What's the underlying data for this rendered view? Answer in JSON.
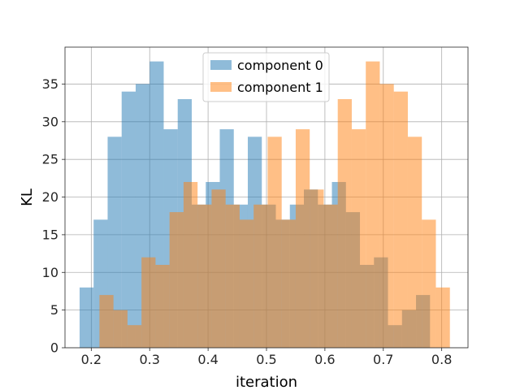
{
  "chart_data": {
    "type": "bar",
    "subtype": "histogram",
    "xlabel": "iteration",
    "ylabel": "KL",
    "xlim": [
      0.155,
      0.845
    ],
    "ylim": [
      0,
      39.9
    ],
    "xticks": [
      0.2,
      0.3,
      0.4,
      0.5,
      0.6,
      0.7,
      0.8
    ],
    "yticks": [
      0,
      5,
      10,
      15,
      20,
      25,
      30,
      35
    ],
    "grid": true,
    "legend_position": "top-center",
    "series": [
      {
        "name": "component 0",
        "color": "#1f77b4",
        "alpha": 0.5,
        "bins": [
          [
            0.18,
            0.204,
            8
          ],
          [
            0.204,
            0.228,
            17
          ],
          [
            0.228,
            0.252,
            28
          ],
          [
            0.252,
            0.276,
            34
          ],
          [
            0.276,
            0.3,
            35
          ],
          [
            0.3,
            0.324,
            38
          ],
          [
            0.324,
            0.348,
            29
          ],
          [
            0.348,
            0.372,
            33
          ],
          [
            0.372,
            0.396,
            19
          ],
          [
            0.396,
            0.42,
            22
          ],
          [
            0.42,
            0.444,
            29
          ],
          [
            0.444,
            0.468,
            19
          ],
          [
            0.468,
            0.492,
            28
          ],
          [
            0.492,
            0.516,
            19
          ],
          [
            0.516,
            0.54,
            17
          ],
          [
            0.54,
            0.564,
            19
          ],
          [
            0.564,
            0.588,
            21
          ],
          [
            0.588,
            0.612,
            19
          ],
          [
            0.612,
            0.636,
            22
          ],
          [
            0.636,
            0.66,
            18
          ],
          [
            0.66,
            0.684,
            11
          ],
          [
            0.684,
            0.708,
            12
          ],
          [
            0.708,
            0.732,
            3
          ],
          [
            0.732,
            0.756,
            5
          ],
          [
            0.756,
            0.78,
            7
          ]
        ]
      },
      {
        "name": "component 1",
        "color": "#ff7f0e",
        "alpha": 0.5,
        "bins": [
          [
            0.214,
            0.238,
            7
          ],
          [
            0.238,
            0.262,
            5
          ],
          [
            0.262,
            0.286,
            3
          ],
          [
            0.286,
            0.31,
            12
          ],
          [
            0.31,
            0.334,
            11
          ],
          [
            0.334,
            0.358,
            18
          ],
          [
            0.358,
            0.382,
            22
          ],
          [
            0.382,
            0.406,
            19
          ],
          [
            0.406,
            0.43,
            21
          ],
          [
            0.43,
            0.454,
            19
          ],
          [
            0.454,
            0.478,
            17
          ],
          [
            0.478,
            0.502,
            19
          ],
          [
            0.502,
            0.526,
            28
          ],
          [
            0.526,
            0.55,
            17
          ],
          [
            0.55,
            0.574,
            29
          ],
          [
            0.574,
            0.598,
            21
          ],
          [
            0.598,
            0.622,
            19
          ],
          [
            0.622,
            0.646,
            33
          ],
          [
            0.646,
            0.67,
            29
          ],
          [
            0.67,
            0.694,
            38
          ],
          [
            0.694,
            0.718,
            35
          ],
          [
            0.718,
            0.742,
            34
          ],
          [
            0.742,
            0.766,
            28
          ],
          [
            0.766,
            0.79,
            17
          ],
          [
            0.79,
            0.814,
            8
          ]
        ]
      }
    ]
  }
}
